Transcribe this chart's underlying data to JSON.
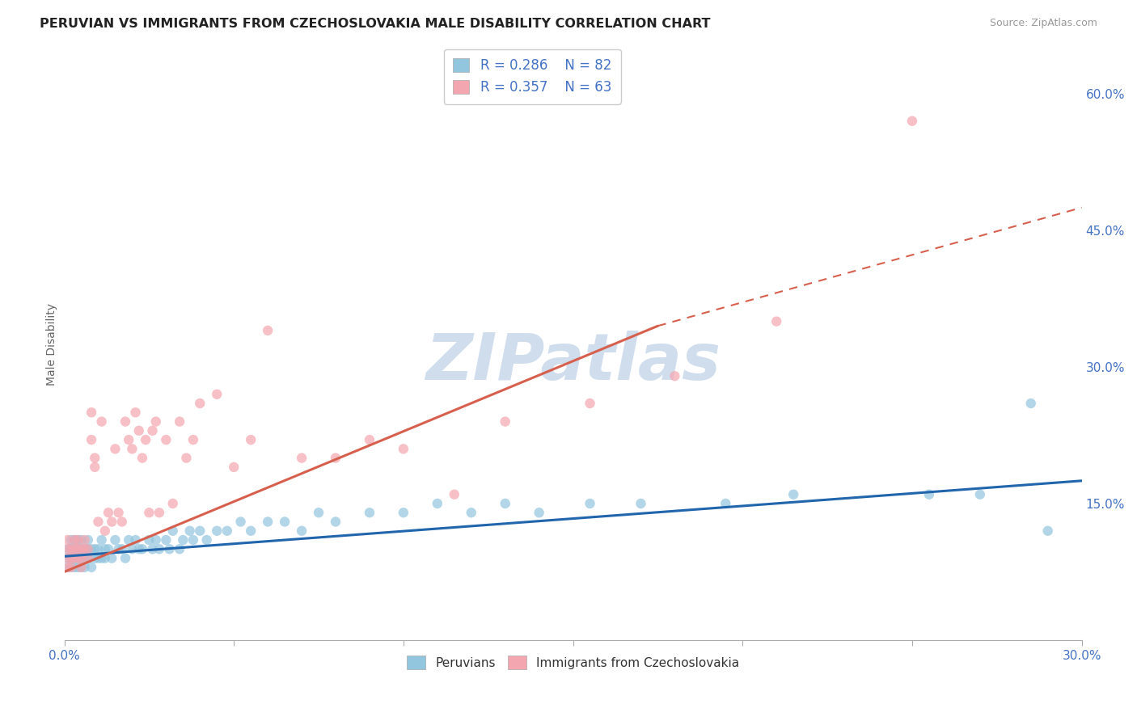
{
  "title": "PERUVIAN VS IMMIGRANTS FROM CZECHOSLOVAKIA MALE DISABILITY CORRELATION CHART",
  "source_text": "Source: ZipAtlas.com",
  "ylabel": "Male Disability",
  "xlim": [
    0.0,
    0.3
  ],
  "ylim": [
    0.0,
    0.65
  ],
  "xticks": [
    0.0,
    0.05,
    0.1,
    0.15,
    0.2,
    0.25,
    0.3
  ],
  "xticklabels": [
    "0.0%",
    "",
    "",
    "",
    "",
    "",
    "30.0%"
  ],
  "yticks_right": [
    0.15,
    0.3,
    0.45,
    0.6
  ],
  "ytick_right_labels": [
    "15.0%",
    "30.0%",
    "45.0%",
    "60.0%"
  ],
  "color_peruvian": "#92c5de",
  "color_czech": "#f4a6b0",
  "trendline_color_peruvian": "#2166ac",
  "trendline_color_czech": "#d6604d",
  "legend_r_peruvian": "R = 0.286",
  "legend_n_peruvian": "N = 82",
  "legend_r_czech": "R = 0.357",
  "legend_n_czech": "N = 63",
  "watermark": "ZIPatlas",
  "watermark_color": "#c8d8ea",
  "background_color": "#ffffff",
  "grid_color": "#dddddd",
  "peruvian_trend_x0": 0.0,
  "peruvian_trend_y0": 0.092,
  "peruvian_trend_x1": 0.3,
  "peruvian_trend_y1": 0.175,
  "czech_trend_solid_x0": 0.0,
  "czech_trend_solid_y0": 0.075,
  "czech_trend_solid_x1": 0.175,
  "czech_trend_solid_y1": 0.345,
  "czech_trend_dashed_x0": 0.175,
  "czech_trend_dashed_y0": 0.345,
  "czech_trend_dashed_x1": 0.3,
  "czech_trend_dashed_y1": 0.475,
  "peruvian_x": [
    0.001,
    0.001,
    0.001,
    0.002,
    0.002,
    0.002,
    0.002,
    0.003,
    0.003,
    0.003,
    0.003,
    0.004,
    0.004,
    0.004,
    0.004,
    0.005,
    0.005,
    0.005,
    0.005,
    0.006,
    0.006,
    0.006,
    0.007,
    0.007,
    0.007,
    0.008,
    0.008,
    0.009,
    0.009,
    0.01,
    0.01,
    0.011,
    0.011,
    0.012,
    0.012,
    0.013,
    0.014,
    0.015,
    0.016,
    0.017,
    0.018,
    0.019,
    0.02,
    0.021,
    0.022,
    0.023,
    0.025,
    0.026,
    0.027,
    0.028,
    0.03,
    0.031,
    0.032,
    0.034,
    0.035,
    0.037,
    0.038,
    0.04,
    0.042,
    0.045,
    0.048,
    0.052,
    0.055,
    0.06,
    0.065,
    0.07,
    0.075,
    0.08,
    0.09,
    0.1,
    0.11,
    0.12,
    0.13,
    0.14,
    0.155,
    0.17,
    0.195,
    0.215,
    0.255,
    0.27,
    0.285,
    0.29
  ],
  "peruvian_y": [
    0.09,
    0.1,
    0.08,
    0.1,
    0.09,
    0.11,
    0.08,
    0.1,
    0.09,
    0.11,
    0.08,
    0.1,
    0.09,
    0.11,
    0.08,
    0.09,
    0.1,
    0.08,
    0.11,
    0.09,
    0.1,
    0.08,
    0.09,
    0.1,
    0.11,
    0.08,
    0.1,
    0.09,
    0.1,
    0.09,
    0.1,
    0.09,
    0.11,
    0.1,
    0.09,
    0.1,
    0.09,
    0.11,
    0.1,
    0.1,
    0.09,
    0.11,
    0.1,
    0.11,
    0.1,
    0.1,
    0.11,
    0.1,
    0.11,
    0.1,
    0.11,
    0.1,
    0.12,
    0.1,
    0.11,
    0.12,
    0.11,
    0.12,
    0.11,
    0.12,
    0.12,
    0.13,
    0.12,
    0.13,
    0.13,
    0.12,
    0.14,
    0.13,
    0.14,
    0.14,
    0.15,
    0.14,
    0.15,
    0.14,
    0.15,
    0.15,
    0.15,
    0.16,
    0.16,
    0.16,
    0.26,
    0.12
  ],
  "czech_x": [
    0.001,
    0.001,
    0.001,
    0.001,
    0.002,
    0.002,
    0.002,
    0.003,
    0.003,
    0.003,
    0.004,
    0.004,
    0.004,
    0.005,
    0.005,
    0.005,
    0.006,
    0.006,
    0.007,
    0.007,
    0.008,
    0.008,
    0.009,
    0.009,
    0.01,
    0.011,
    0.012,
    0.013,
    0.014,
    0.015,
    0.016,
    0.017,
    0.018,
    0.019,
    0.02,
    0.021,
    0.022,
    0.023,
    0.024,
    0.025,
    0.026,
    0.027,
    0.028,
    0.03,
    0.032,
    0.034,
    0.036,
    0.038,
    0.04,
    0.045,
    0.05,
    0.055,
    0.06,
    0.07,
    0.08,
    0.09,
    0.1,
    0.115,
    0.13,
    0.155,
    0.18,
    0.21,
    0.25
  ],
  "czech_y": [
    0.09,
    0.1,
    0.08,
    0.11,
    0.09,
    0.1,
    0.08,
    0.11,
    0.09,
    0.1,
    0.1,
    0.09,
    0.11,
    0.09,
    0.1,
    0.08,
    0.1,
    0.11,
    0.09,
    0.1,
    0.25,
    0.22,
    0.2,
    0.19,
    0.13,
    0.24,
    0.12,
    0.14,
    0.13,
    0.21,
    0.14,
    0.13,
    0.24,
    0.22,
    0.21,
    0.25,
    0.23,
    0.2,
    0.22,
    0.14,
    0.23,
    0.24,
    0.14,
    0.22,
    0.15,
    0.24,
    0.2,
    0.22,
    0.26,
    0.27,
    0.19,
    0.22,
    0.34,
    0.2,
    0.2,
    0.22,
    0.21,
    0.16,
    0.24,
    0.26,
    0.29,
    0.35,
    0.57
  ]
}
